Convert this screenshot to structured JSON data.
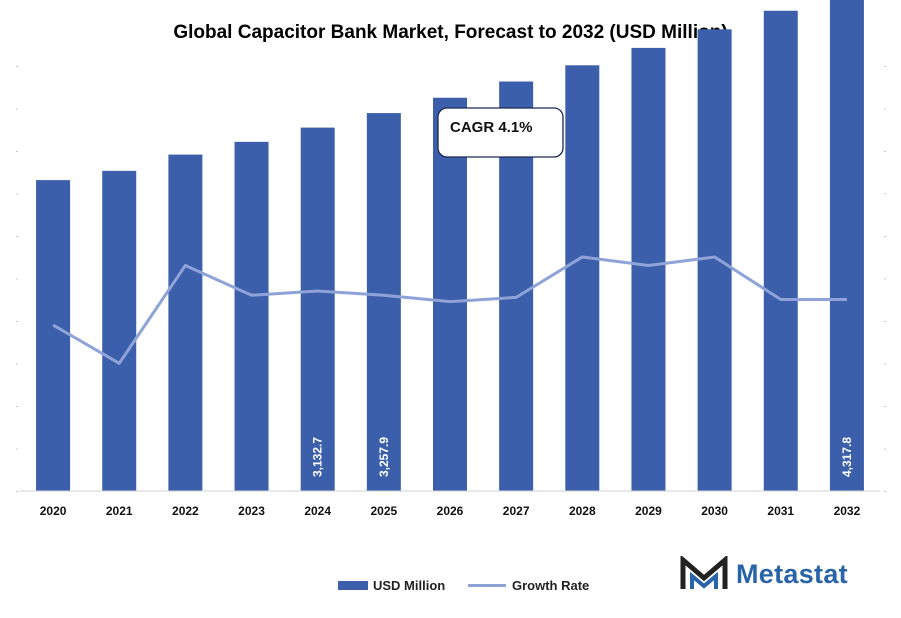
{
  "chart_data": {
    "type": "bar",
    "title": "Global Capacitor Bank Market, Forecast to 2032 (USD Million)",
    "categories": [
      "2020",
      "2021",
      "2022",
      "2023",
      "2024",
      "2025",
      "2026",
      "2027",
      "2028",
      "2029",
      "2030",
      "2031",
      "2032"
    ],
    "series": [
      {
        "name": "USD Million",
        "type": "bar",
        "values": [
          2680,
          2760,
          2900,
          3010,
          3132.7,
          3257.9,
          3390,
          3530,
          3670,
          3820,
          3980,
          4140,
          4317.8
        ],
        "color": "#3b5faa",
        "data_labels": [
          "",
          "",
          "",
          "",
          "3,132.7",
          "3,257.9",
          "",
          "",
          "",
          "",
          "",
          "",
          "4,317.8"
        ]
      },
      {
        "name": "Growth Rate",
        "type": "line",
        "values": [
          3.9,
          3.0,
          5.3,
          4.6,
          4.7,
          4.6,
          4.45,
          4.55,
          5.5,
          5.3,
          5.5,
          4.5,
          4.5
        ],
        "color": "#8fa3d8"
      }
    ],
    "ylim": [
      0,
      5000
    ],
    "y2lim": [
      0,
      8
    ],
    "annotations": [
      {
        "text": "CAGR 4.1%"
      }
    ],
    "legend_position": "bottom-center",
    "grid": false
  },
  "branding": {
    "logo_text": "Metastat",
    "logo_color": "#2a64a8",
    "logo_mark_color": "#222222"
  },
  "legend": {
    "bar_label": "USD Million",
    "line_label": "Growth Rate"
  }
}
